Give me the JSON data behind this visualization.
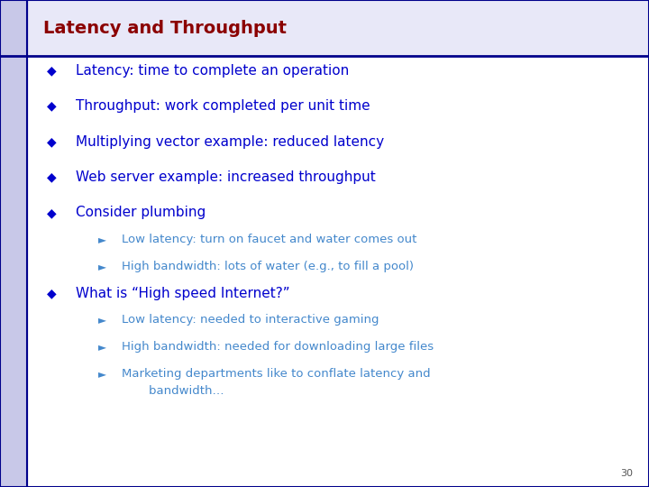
{
  "title": "Latency and Throughput",
  "title_color": "#8B0000",
  "title_fontsize": 14,
  "bg_color": "#FFFFFF",
  "left_bar_color": "#C8C8E8",
  "header_line_color": "#00008B",
  "slide_number": "30",
  "bullet_color": "#0000CD",
  "bullet_char": "◆",
  "sub_bullet_char": "►",
  "sub_bullet_color": "#4488CC",
  "main_items": [
    "Latency: time to complete an operation",
    "Throughput: work completed per unit time",
    "Multiplying vector example: reduced latency",
    "Web server example: increased throughput",
    "Consider plumbing"
  ],
  "sub_items_consider": [
    "Low latency: turn on faucet and water comes out",
    "High bandwidth: lots of water (e.g., to fill a pool)"
  ],
  "main_item_6": "What is “High speed Internet?”",
  "sub_items_internet": [
    "Low latency: needed to interactive gaming",
    "High bandwidth: needed for downloading large files",
    "Marketing departments like to conflate latency and"
  ],
  "sub_item_internet_wrap": "    bandwidth…",
  "main_fontsize": 11,
  "sub_fontsize": 9.5,
  "slide_num_fontsize": 8,
  "left_bar_width": 0.042,
  "top_bar_height": 0.115,
  "header_bg_color": "#E8E8F8"
}
